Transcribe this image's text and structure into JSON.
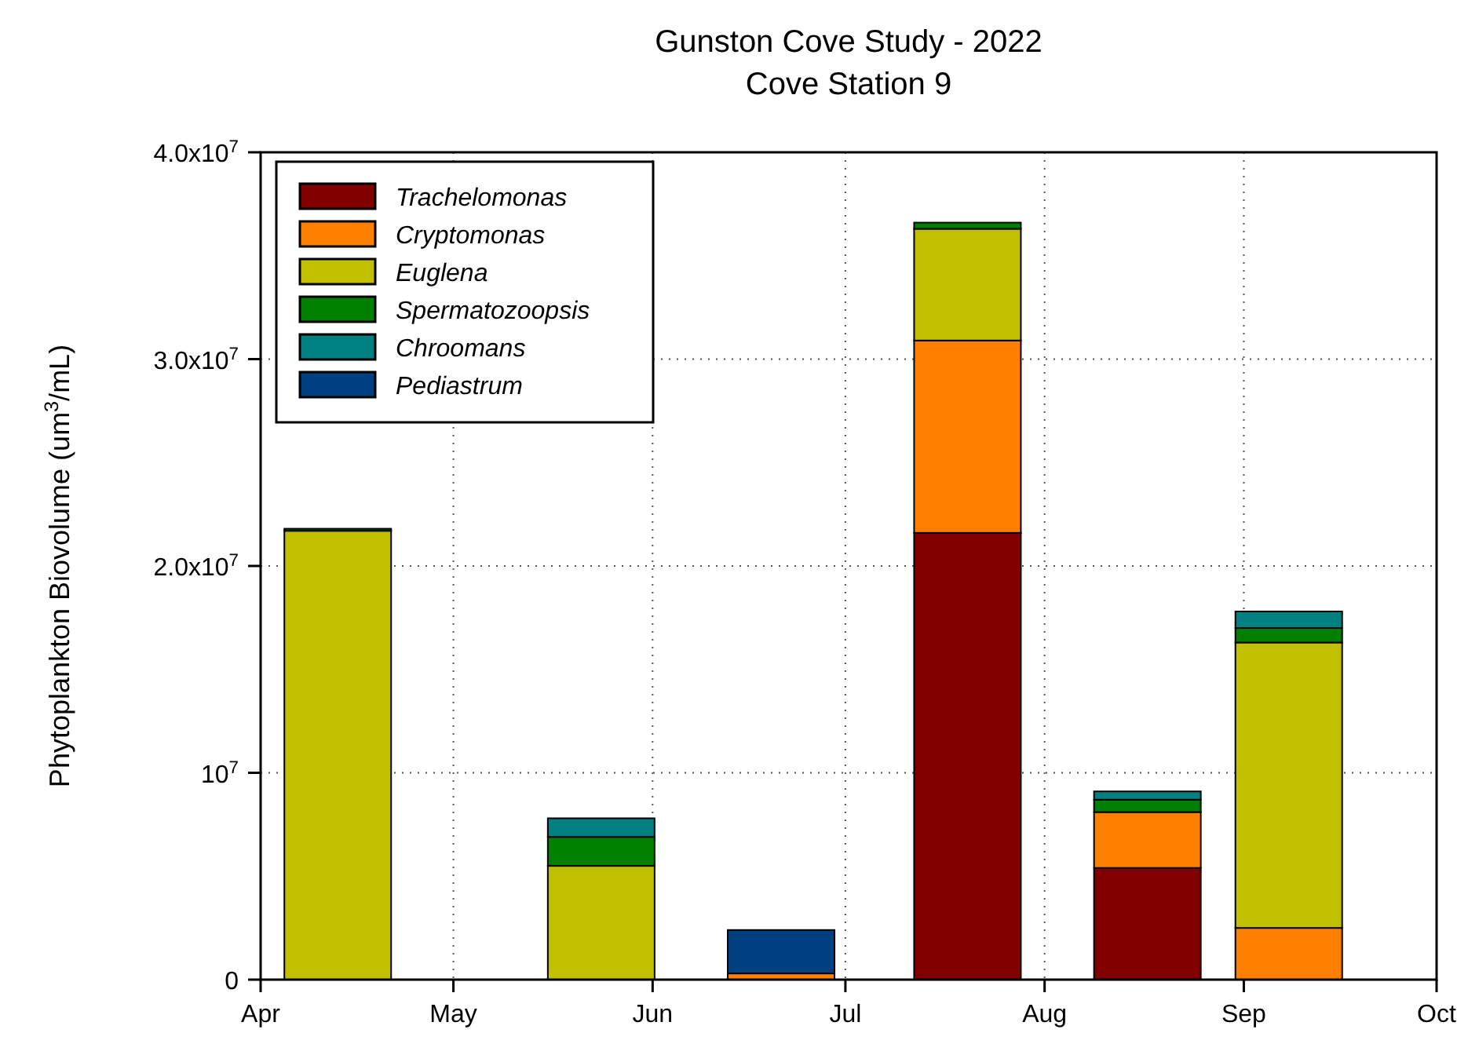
{
  "chart_data": {
    "type": "bar",
    "stacked": true,
    "title": "Gunston Cove Study - 2022",
    "subtitle": "Cove Station 9",
    "ylabel": "Phytoplankton Biovolume (um$^{3}$/mL)",
    "x": [
      "2022-04-13",
      "2022-05-24",
      "2022-06-21",
      "2022-07-20",
      "2022-08-17",
      "2022-09-08"
    ],
    "series": [
      {
        "name": "Trachelomonas",
        "color": "#800000",
        "values": [
          0,
          0,
          0,
          21600000,
          5400000,
          0
        ]
      },
      {
        "name": "Cryptomonas",
        "color": "#ff8000",
        "values": [
          0,
          0,
          300000,
          9300000,
          2700000,
          2500000
        ]
      },
      {
        "name": "Euglena",
        "color": "#c0c000",
        "values": [
          21700000,
          5500000,
          0,
          5400000,
          0,
          13800000
        ]
      },
      {
        "name": "Spermatozoopsis",
        "color": "#008000",
        "values": [
          100000,
          1400000,
          0,
          300000,
          600000,
          700000
        ]
      },
      {
        "name": "Chroomans",
        "color": "#008080",
        "values": [
          0,
          900000,
          0,
          0,
          400000,
          800000
        ]
      },
      {
        "name": "Pediastrum",
        "color": "#004080",
        "values": [
          0,
          0,
          2100000,
          0,
          0,
          0
        ]
      }
    ],
    "xlim": [
      "2022-04-01",
      "2022-10-01"
    ],
    "xticks": [
      {
        "value": "2022-04-01",
        "label": "Apr"
      },
      {
        "value": "2022-05-01",
        "label": "May"
      },
      {
        "value": "2022-06-01",
        "label": "Jun"
      },
      {
        "value": "2022-07-01",
        "label": "Jul"
      },
      {
        "value": "2022-08-01",
        "label": "Aug"
      },
      {
        "value": "2022-09-01",
        "label": "Sep"
      },
      {
        "value": "2022-10-01",
        "label": "Oct"
      }
    ],
    "ylim": [
      0,
      40000000
    ],
    "yticks": [
      0,
      {
        "value": 10000000,
        "label": "10$^{7}$"
      },
      {
        "value": 20000000,
        "label": "2.0x10$^{7}$"
      },
      {
        "value": 30000000,
        "label": "3.0x10$^{7}$"
      },
      {
        "value": 40000000,
        "label": "4.0x10$^{7}$"
      }
    ],
    "grid": true,
    "legend": "top left"
  }
}
